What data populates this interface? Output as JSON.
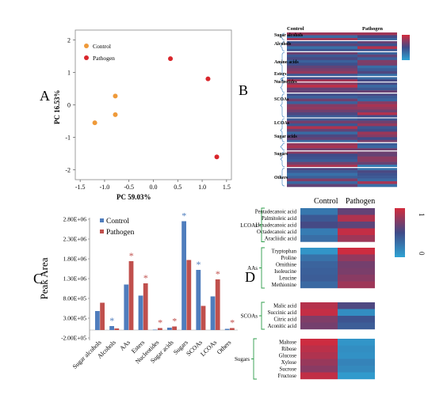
{
  "panel_labels": {
    "a": "A",
    "b": "B",
    "c": "C",
    "d": "D"
  },
  "chart_data": [
    {
      "panel": "A",
      "type": "scatter",
      "xlabel": "PC  59.03%",
      "ylabel": "PC  16.53%",
      "xlim": [
        -1.6,
        1.6
      ],
      "ylim": [
        -2.3,
        2.3
      ],
      "xticks": [
        "-1.5",
        "-1.0",
        "-0.5",
        "0.0",
        "0.5",
        "1.0",
        "1.5"
      ],
      "yticks": [
        "-2",
        "-1",
        "0",
        "1",
        "2"
      ],
      "grid": false,
      "legend": "top-left",
      "series": [
        {
          "name": "Control",
          "color": "#ef9a3a",
          "points": [
            [
              -1.2,
              -0.55
            ],
            [
              -0.78,
              0.27
            ],
            [
              -0.78,
              -0.3
            ]
          ]
        },
        {
          "name": "Pathogen",
          "color": "#d9262c",
          "points": [
            [
              0.35,
              1.42
            ],
            [
              1.12,
              0.8
            ],
            [
              1.3,
              -1.6
            ]
          ]
        }
      ]
    },
    {
      "panel": "B",
      "type": "heatmap",
      "columns": [
        "Control",
        "Pathogen"
      ],
      "groups": [
        "Sugar alcohols",
        "Alcohols",
        "Amino acids",
        "Esters",
        "Nucleotides",
        "SCOAs",
        "LCOAs",
        "Sugar acids",
        "Sugars",
        "Others"
      ],
      "legend": "top-right",
      "colormap": [
        "#2fa3d4",
        "#3f4b88",
        "#d32b3d"
      ]
    },
    {
      "panel": "C",
      "type": "bar",
      "ylabel": "Peak Area",
      "categories": [
        "Sugar alcohols",
        "Alcohols",
        "AAs",
        "Esters",
        "Nucleotides",
        "Sugar acids",
        "Sugars",
        "SCOAs",
        "LCOAs",
        "Others"
      ],
      "yticks": [
        "-2.00E+05",
        "3.00E+05",
        "8.00E+05",
        "1.30E+06",
        "1.80E+06",
        "2.30E+06",
        "2.80E+06"
      ],
      "ylim": [
        -200000,
        2800000
      ],
      "legend": "top-left",
      "series": [
        {
          "name": "Control",
          "color": "#4f7dbd",
          "values": [
            480000,
            100000,
            1150000,
            870000,
            10000,
            60000,
            2750000,
            1520000,
            850000,
            30000
          ]
        },
        {
          "name": "Pathogen",
          "color": "#c0504d",
          "values": [
            690000,
            40000,
            1740000,
            1180000,
            50000,
            90000,
            1770000,
            610000,
            1280000,
            50000
          ]
        }
      ],
      "significance": [
        {
          "category": "Alcohols",
          "series": "Control",
          "label": "*"
        },
        {
          "category": "AAs",
          "series": "Pathogen",
          "label": "*"
        },
        {
          "category": "Esters",
          "series": "Pathogen",
          "label": "*"
        },
        {
          "category": "Nucleotides",
          "series": "Pathogen",
          "label": "*"
        },
        {
          "category": "Sugar acids",
          "series": "Pathogen",
          "label": "*"
        },
        {
          "category": "Sugars",
          "series": "Control",
          "label": "*"
        },
        {
          "category": "SCOAs",
          "series": "Control",
          "label": "*"
        },
        {
          "category": "LCOAs",
          "series": "Pathogen",
          "label": "*"
        },
        {
          "category": "Others",
          "series": "Pathogen",
          "label": "*"
        }
      ]
    },
    {
      "panel": "D",
      "type": "heatmap",
      "columns": [
        "Control",
        "Pathogen"
      ],
      "colorbar": {
        "min_label": "0",
        "max_label": "1"
      },
      "colormap": [
        "#2fa3d4",
        "#3f4b88",
        "#d32b3d"
      ],
      "groups": [
        {
          "name": "LCOAs",
          "rows": [
            "Pentadecanoic acid",
            "Palmitoleic acid",
            "Hexadecanoic acid",
            "Octadecanoic acid",
            "Aracliidic acid"
          ],
          "values": [
            [
              0.25,
              0.62
            ],
            [
              0.42,
              0.88
            ],
            [
              0.52,
              0.6
            ],
            [
              0.22,
              0.95
            ],
            [
              0.3,
              0.82
            ]
          ]
        },
        {
          "name": "AAs",
          "rows": [
            "Tryptophan",
            "Proline",
            "Ornithine",
            "Isoleucine",
            "Leucine",
            "Methionine"
          ],
          "values": [
            [
              0.08,
              0.98
            ],
            [
              0.28,
              0.78
            ],
            [
              0.36,
              0.68
            ],
            [
              0.38,
              0.7
            ],
            [
              0.4,
              0.75
            ],
            [
              0.33,
              0.82
            ]
          ]
        },
        {
          "name": "SCOAs",
          "rows": [
            "Malic acid",
            "Succinic acid",
            "Citric acid",
            "Aconitic acid"
          ],
          "values": [
            [
              0.9,
              0.55
            ],
            [
              0.95,
              0.12
            ],
            [
              0.72,
              0.45
            ],
            [
              0.68,
              0.4
            ]
          ]
        },
        {
          "name": "Sugars",
          "rows": [
            "Maltose",
            "Ribose",
            "Glucose",
            "Xylose",
            "Sucrose",
            "Fructose"
          ],
          "values": [
            [
              0.98,
              0.08
            ],
            [
              0.92,
              0.12
            ],
            [
              0.88,
              0.1
            ],
            [
              0.8,
              0.18
            ],
            [
              0.75,
              0.15
            ],
            [
              0.94,
              0.05
            ]
          ]
        }
      ]
    }
  ]
}
